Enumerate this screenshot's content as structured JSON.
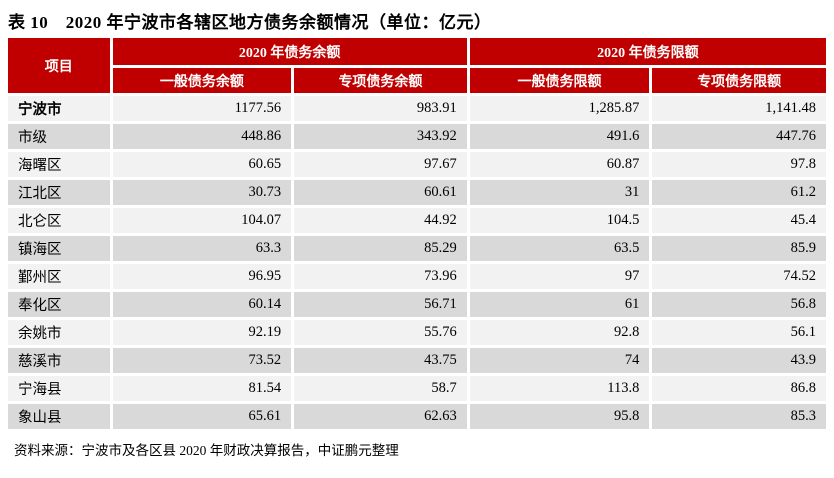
{
  "title": "表 10　2020 年宁波市各辖区地方债务余额情况（单位：亿元）",
  "colors": {
    "header_red": "#C00000",
    "row_light": "#F2F2F2",
    "row_dark": "#D9D9D9",
    "header_text": "#FFFFFF",
    "body_text": "#000000"
  },
  "table": {
    "corner_header": "项目",
    "group_headers": {
      "balance": "2020 年债务余额",
      "limit": "2020 年债务限额"
    },
    "sub_headers": {
      "general_balance": "一般债务余额",
      "special_balance": "专项债务余额",
      "general_limit": "一般债务限额",
      "special_limit": "专项债务限额"
    },
    "rows": [
      {
        "name": "宁波市",
        "values": [
          "1177.56",
          "983.91",
          "1,285.87",
          "1,141.48"
        ]
      },
      {
        "name": "市级",
        "values": [
          "448.86",
          "343.92",
          "491.6",
          "447.76"
        ]
      },
      {
        "name": "海曙区",
        "values": [
          "60.65",
          "97.67",
          "60.87",
          "97.8"
        ]
      },
      {
        "name": "江北区",
        "values": [
          "30.73",
          "60.61",
          "31",
          "61.2"
        ]
      },
      {
        "name": "北仑区",
        "values": [
          "104.07",
          "44.92",
          "104.5",
          "45.4"
        ]
      },
      {
        "name": "镇海区",
        "values": [
          "63.3",
          "85.29",
          "63.5",
          "85.9"
        ]
      },
      {
        "name": "鄞州区",
        "values": [
          "96.95",
          "73.96",
          "97",
          "74.52"
        ]
      },
      {
        "name": "奉化区",
        "values": [
          "60.14",
          "56.71",
          "61",
          "56.8"
        ]
      },
      {
        "name": "余姚市",
        "values": [
          "92.19",
          "55.76",
          "92.8",
          "56.1"
        ]
      },
      {
        "name": "慈溪市",
        "values": [
          "73.52",
          "43.75",
          "74",
          "43.9"
        ]
      },
      {
        "name": "宁海县",
        "values": [
          "81.54",
          "58.7",
          "113.8",
          "86.8"
        ]
      },
      {
        "name": "象山县",
        "values": [
          "65.61",
          "62.63",
          "95.8",
          "85.3"
        ]
      }
    ]
  },
  "footer": "资料来源：宁波市及各区县 2020 年财政决算报告，中证鹏元整理"
}
